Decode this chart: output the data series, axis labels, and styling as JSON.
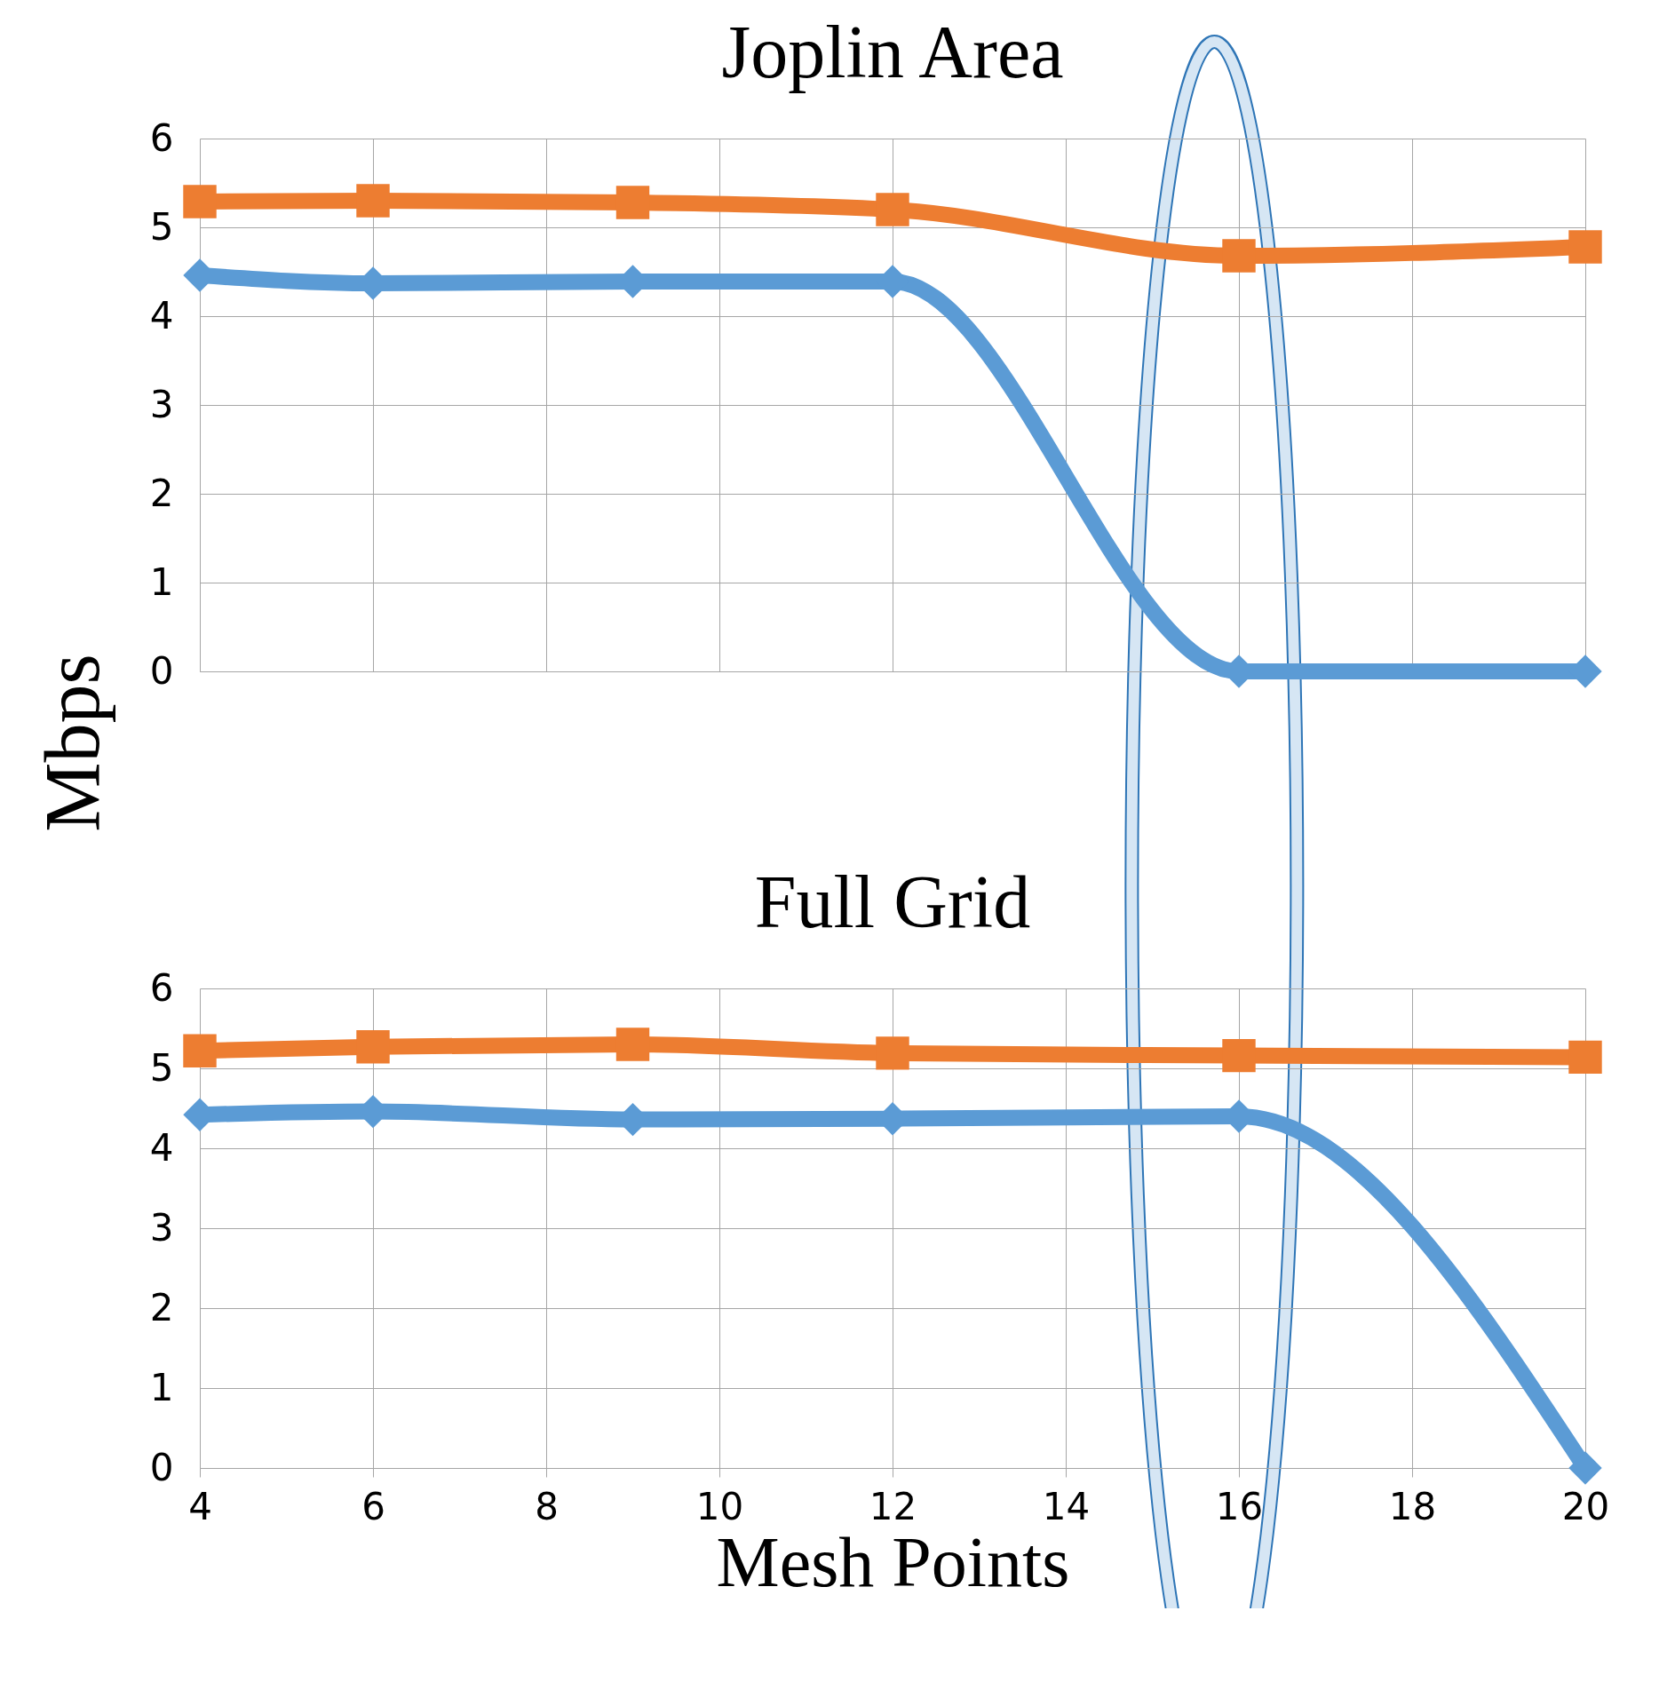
{
  "chart_data": [
    {
      "type": "line",
      "title": "Joplin Area",
      "ylabel": "Mbps",
      "x": [
        4,
        6,
        9,
        12,
        16,
        20
      ],
      "xlim": [
        4,
        20
      ],
      "xticks": [
        4,
        6,
        8,
        10,
        12,
        14,
        16,
        18,
        20
      ],
      "ylim": [
        0,
        6
      ],
      "yticks": [
        0,
        1,
        2,
        3,
        4,
        5,
        6
      ],
      "grid": true,
      "tick_labels": "y",
      "series": [
        {
          "color": "#5b9bd5",
          "marker": "diamond",
          "values": [
            4.46,
            4.37,
            4.39,
            4.39,
            0,
            0
          ]
        },
        {
          "color": "#ed7d31",
          "marker": "square",
          "values": [
            5.29,
            5.3,
            5.28,
            5.2,
            4.68,
            4.78
          ]
        }
      ]
    },
    {
      "type": "line",
      "title": "Full Grid",
      "xlabel": "Mesh Points",
      "x": [
        4,
        6,
        9,
        12,
        16,
        20
      ],
      "xlim": [
        4,
        20
      ],
      "xticks": [
        4,
        6,
        8,
        10,
        12,
        14,
        16,
        18,
        20
      ],
      "ylim": [
        0,
        6
      ],
      "yticks": [
        0,
        1,
        2,
        3,
        4,
        5,
        6
      ],
      "grid": true,
      "series": [
        {
          "color": "#5b9bd5",
          "marker": "diamond",
          "values": [
            4.42,
            4.46,
            4.36,
            4.37,
            4.4,
            0
          ]
        },
        {
          "color": "#ed7d31",
          "marker": "square",
          "values": [
            5.22,
            5.27,
            5.3,
            5.19,
            5.16,
            5.14
          ]
        }
      ]
    }
  ]
}
